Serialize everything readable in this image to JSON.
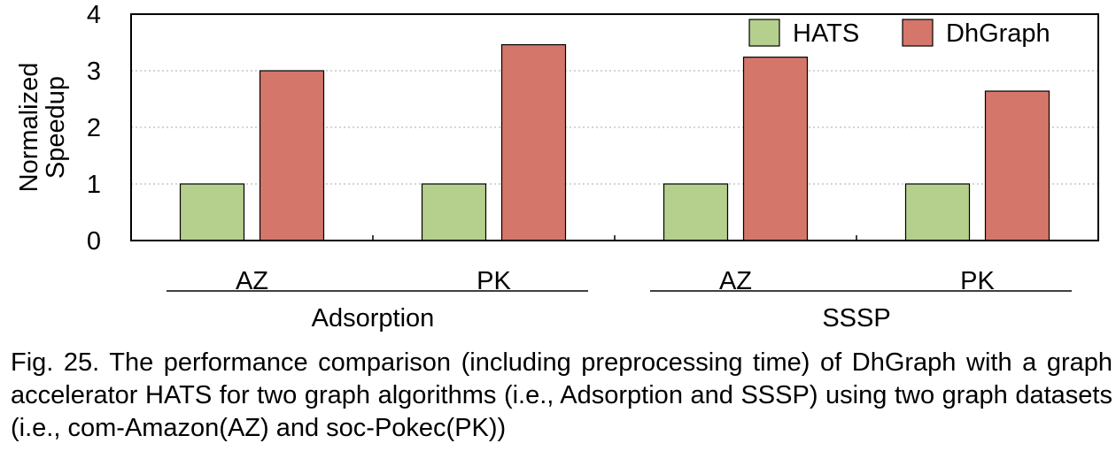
{
  "chart_data": {
    "type": "bar",
    "ylabel": "Normalized\nSpeedup",
    "ylim": [
      0,
      4
    ],
    "yticks": [
      0,
      1,
      2,
      3,
      4
    ],
    "grid": "horizontal dotted",
    "legend_position": "top-right",
    "categories": [
      "AZ",
      "PK",
      "AZ",
      "PK"
    ],
    "groups": [
      {
        "label": "Adsorption",
        "categories": [
          "AZ",
          "PK"
        ]
      },
      {
        "label": "SSSP",
        "categories": [
          "AZ",
          "PK"
        ]
      }
    ],
    "series": [
      {
        "name": "HATS",
        "color": "#b5cf8d",
        "values": [
          1.0,
          1.0,
          1.0,
          1.0
        ]
      },
      {
        "name": "DhGraph",
        "color": "#d4776a",
        "values": [
          3.0,
          3.46,
          3.24,
          2.64
        ]
      }
    ]
  },
  "caption": "Fig. 25. The performance comparison (including preprocessing time) of DhGraph with a graph accelerator HATS for two graph algorithms (i.e., Adsorption and SSSP) using two graph datasets (i.e., com-Amazon(AZ) and soc-Pokec(PK))"
}
